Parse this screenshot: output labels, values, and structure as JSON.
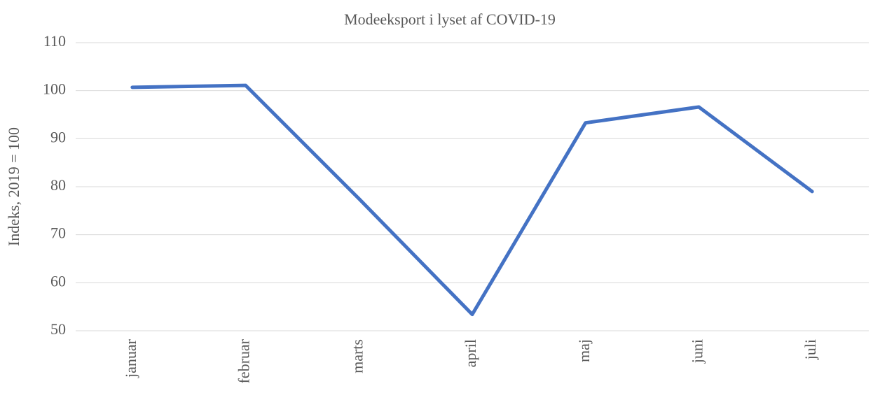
{
  "chart_data": {
    "type": "line",
    "title": "Modeeksport i lyset af  COVID-19",
    "y_label": "Indeks, 2019 = 100",
    "categories": [
      "januar",
      "februar",
      "marts",
      "april",
      "maj",
      "juni",
      "juli"
    ],
    "series": [
      {
        "name": "Modeeksport",
        "color": "#4472c4",
        "values": [
          100.7,
          101.1,
          77.5,
          53.4,
          93.3,
          96.6,
          79.0
        ]
      }
    ],
    "ylim": [
      50,
      110
    ],
    "yticks": [
      50,
      60,
      70,
      80,
      90,
      100,
      110
    ],
    "grid": true
  }
}
